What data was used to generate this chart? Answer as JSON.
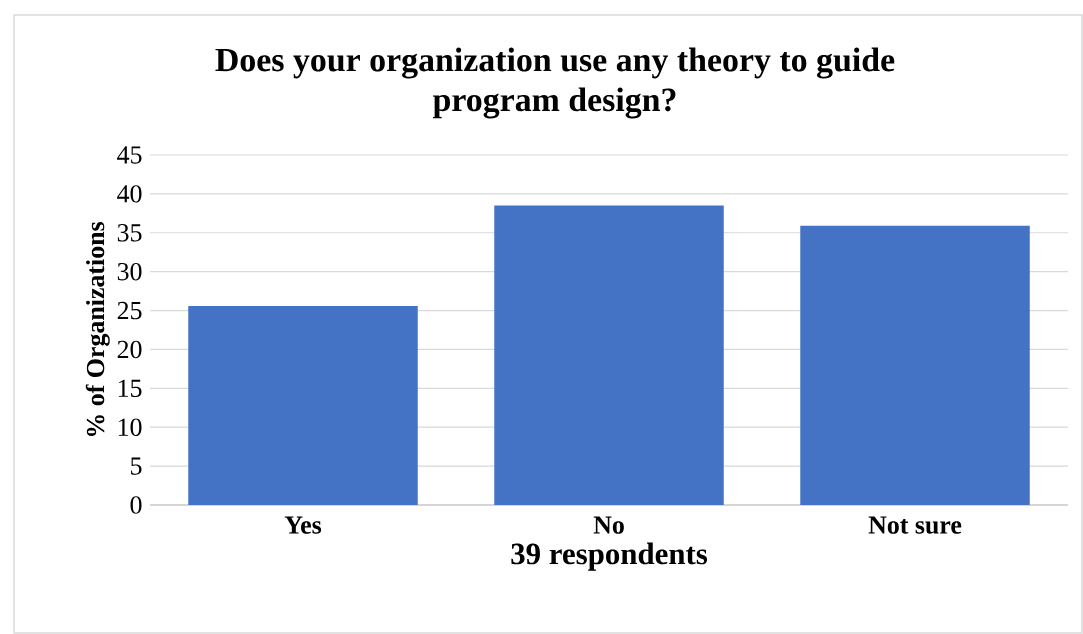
{
  "chart_data": {
    "type": "bar",
    "title": "Does your organization use any theory to guide program design?",
    "categories": [
      "Yes",
      "No",
      "Not sure"
    ],
    "values": [
      25.6,
      38.5,
      35.9
    ],
    "color": "#4472c4",
    "xlabel": "39 respondents",
    "ylabel": "% of Organizations",
    "ylim": [
      0,
      45
    ],
    "yticks": [
      0,
      5,
      10,
      15,
      20,
      25,
      30,
      35,
      40,
      45
    ],
    "grid": "y"
  }
}
